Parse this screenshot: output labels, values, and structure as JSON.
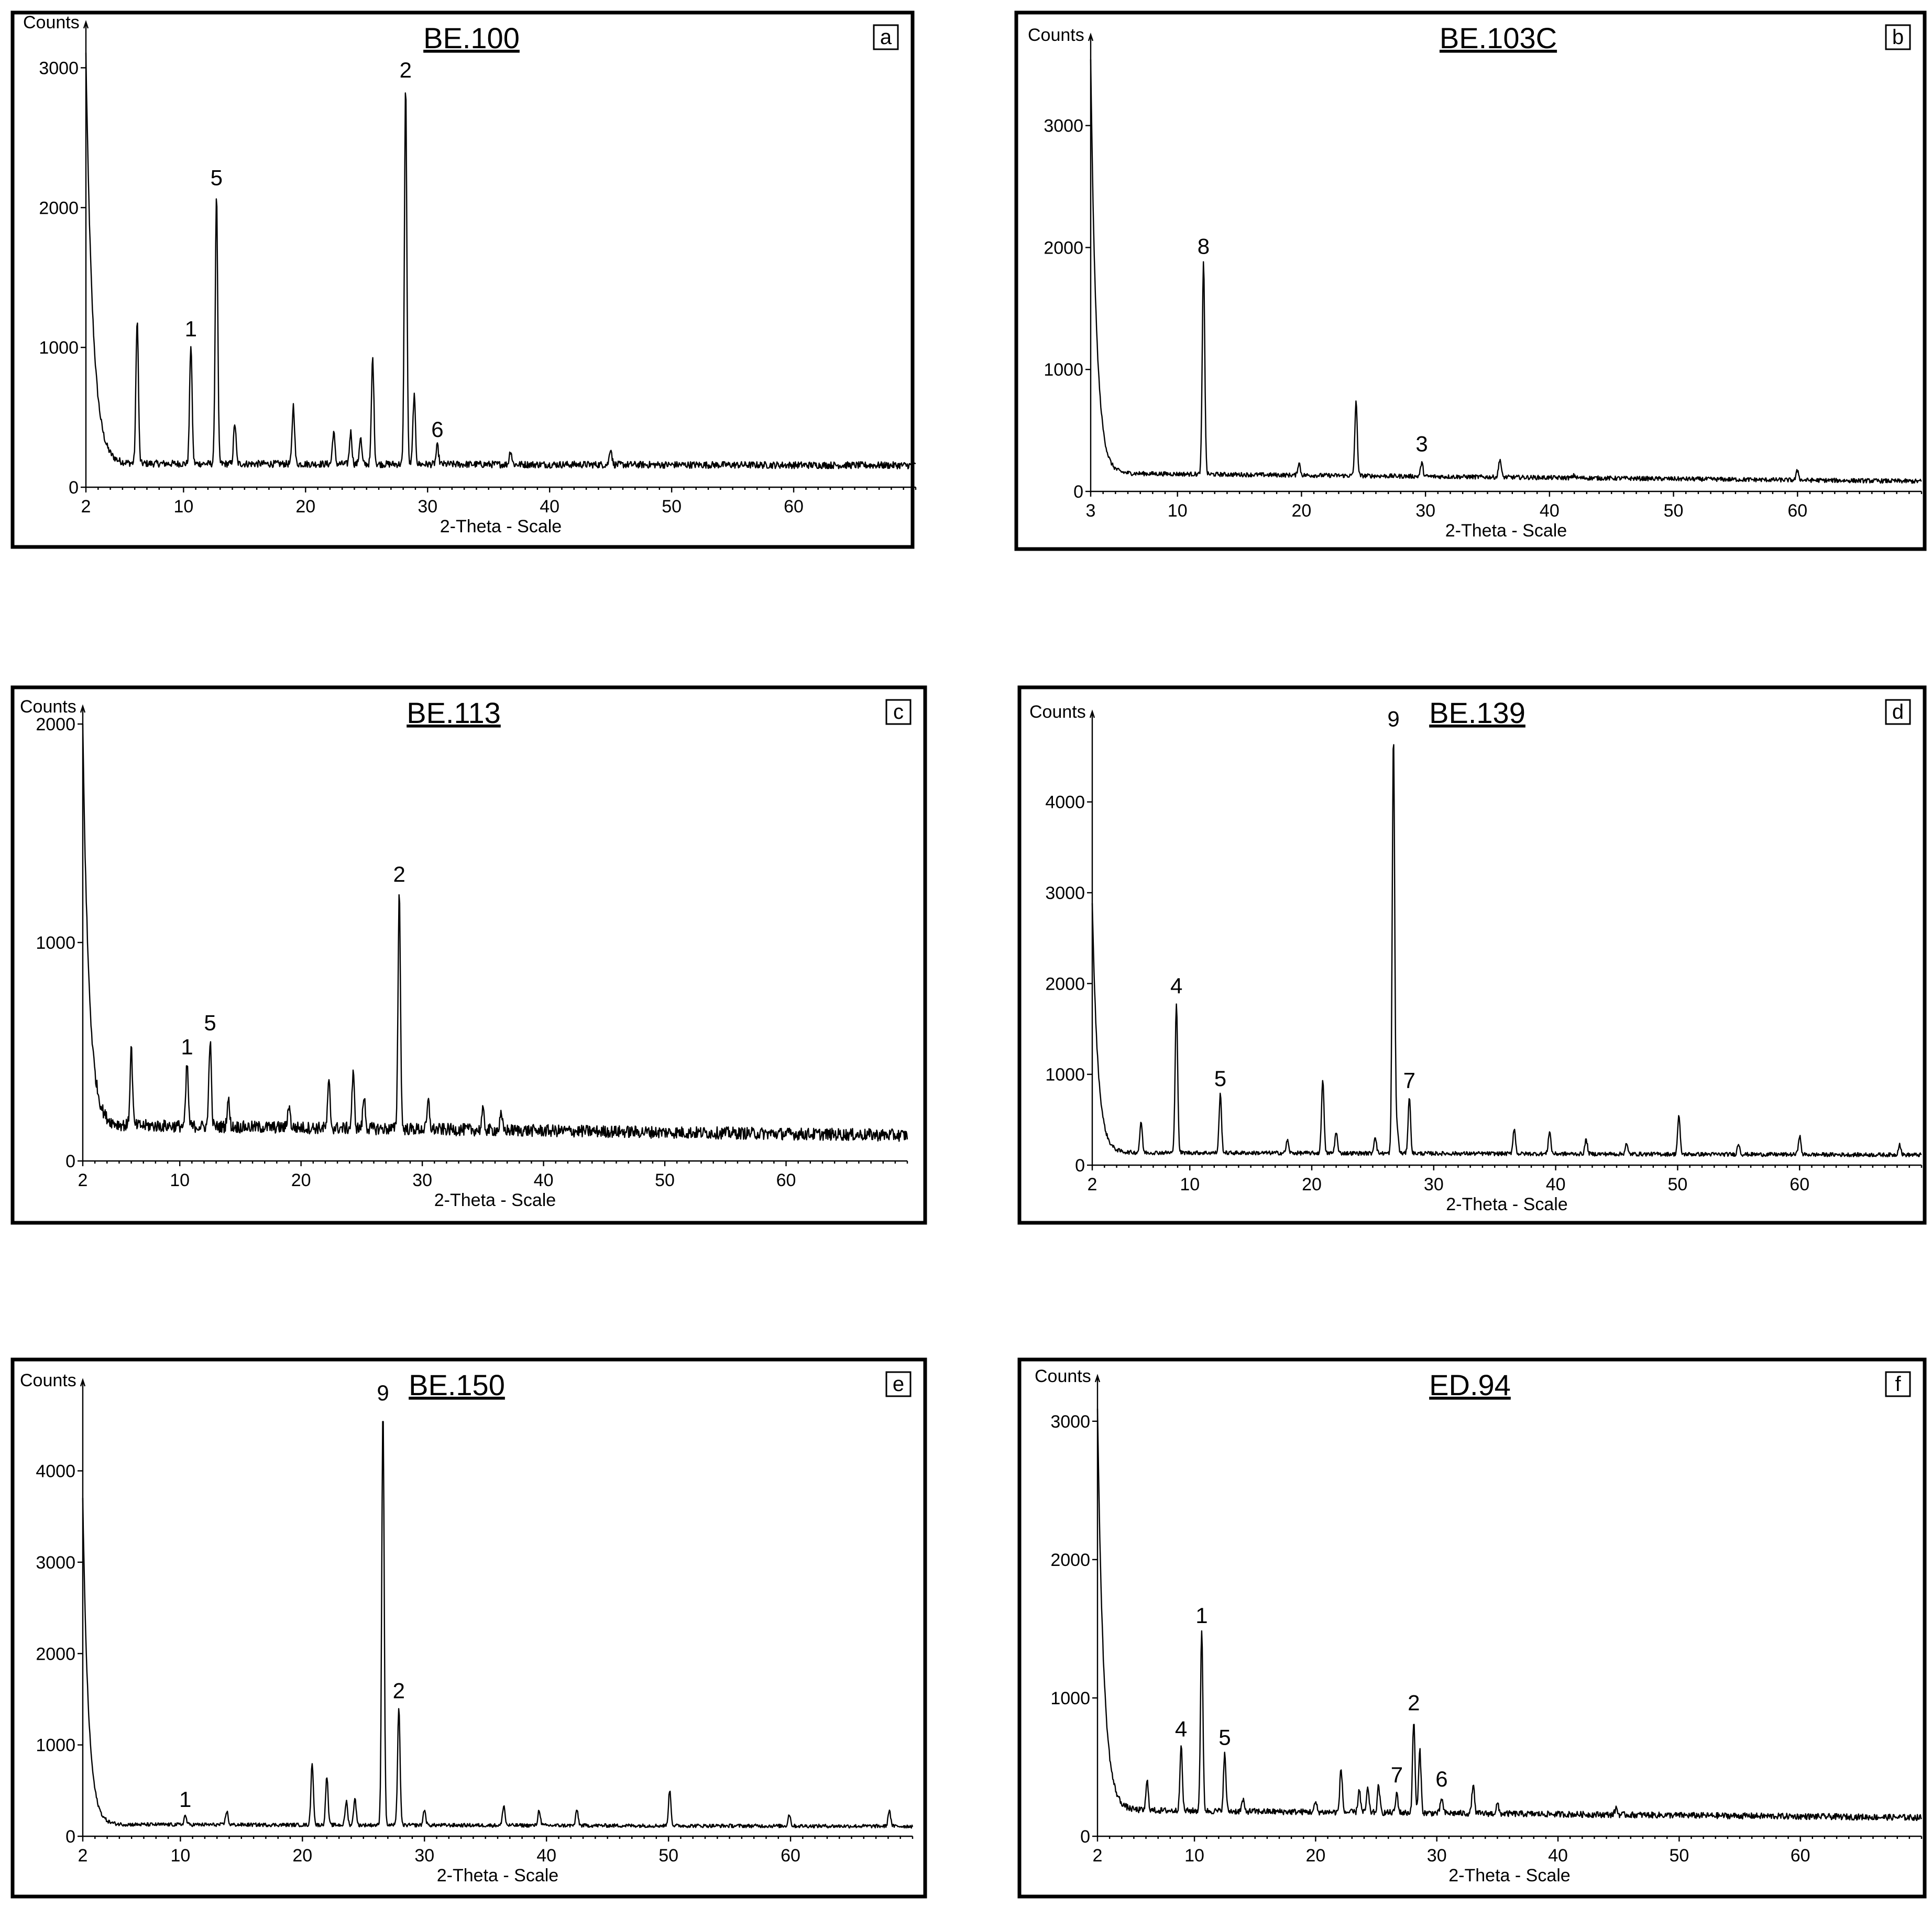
{
  "chart_data": [
    {
      "type": "line",
      "panel_letter": "a",
      "title": "BE.100",
      "xlabel": "2-Theta - Scale",
      "ylabel": "Counts",
      "xlim": [
        2,
        70
      ],
      "ylim": [
        0,
        3200
      ],
      "x_ticks": [
        2,
        10,
        20,
        30,
        40,
        50,
        60
      ],
      "y_ticks": [
        0,
        1000,
        2000,
        3000
      ],
      "background": {
        "start": 3100,
        "decay": 0.55,
        "base": 170,
        "slope": -0.2,
        "noise": 25
      },
      "peaks": [
        {
          "x": 6.2,
          "y": 1200
        },
        {
          "x": 10.6,
          "y": 1020,
          "label": "1"
        },
        {
          "x": 12.7,
          "y": 2100,
          "label": "5"
        },
        {
          "x": 14.2,
          "y": 460
        },
        {
          "x": 19.0,
          "y": 590
        },
        {
          "x": 22.3,
          "y": 400
        },
        {
          "x": 23.7,
          "y": 400
        },
        {
          "x": 24.5,
          "y": 360
        },
        {
          "x": 25.5,
          "y": 930
        },
        {
          "x": 28.2,
          "y": 2870,
          "label": "2"
        },
        {
          "x": 28.9,
          "y": 660
        },
        {
          "x": 30.8,
          "y": 300,
          "label": "6"
        },
        {
          "x": 36.8,
          "y": 270
        },
        {
          "x": 45.0,
          "y": 290
        }
      ]
    },
    {
      "type": "line",
      "panel_letter": "b",
      "title": "BE.103C",
      "xlabel": "2-Theta - Scale",
      "ylabel": "Counts",
      "xlim": [
        3,
        70
      ],
      "ylim": [
        0,
        3600
      ],
      "x_ticks": [
        3,
        10,
        20,
        30,
        40,
        50,
        60
      ],
      "y_ticks": [
        0,
        1000,
        2000,
        3000
      ],
      "background": {
        "start": 3550,
        "decay": 0.45,
        "base": 150,
        "slope": -1.0,
        "noise": 18
      },
      "peaks": [
        {
          "x": 12.1,
          "y": 1880,
          "label": "8"
        },
        {
          "x": 19.8,
          "y": 250
        },
        {
          "x": 24.4,
          "y": 750
        },
        {
          "x": 29.7,
          "y": 260,
          "label": "3"
        },
        {
          "x": 36.0,
          "y": 300
        },
        {
          "x": 42.0,
          "y": 170
        },
        {
          "x": 60.0,
          "y": 230
        }
      ]
    },
    {
      "type": "line",
      "panel_letter": "c",
      "title": "BE.113",
      "xlabel": "2-Theta - Scale",
      "ylabel": "Counts",
      "xlim": [
        2,
        70
      ],
      "ylim": [
        0,
        2000
      ],
      "x_ticks": [
        2,
        10,
        20,
        30,
        40,
        50,
        60
      ],
      "y_ticks": [
        0,
        1000,
        2000
      ],
      "background": {
        "start": 2000,
        "decay": 0.5,
        "base": 165,
        "slope": -0.7,
        "noise": 28
      },
      "peaks": [
        {
          "x": 6.0,
          "y": 520
        },
        {
          "x": 10.6,
          "y": 450,
          "label": "1"
        },
        {
          "x": 12.5,
          "y": 560,
          "label": "5"
        },
        {
          "x": 14.0,
          "y": 290
        },
        {
          "x": 19.0,
          "y": 270
        },
        {
          "x": 22.3,
          "y": 370
        },
        {
          "x": 24.3,
          "y": 410
        },
        {
          "x": 25.2,
          "y": 310
        },
        {
          "x": 28.1,
          "y": 1240,
          "label": "2"
        },
        {
          "x": 30.5,
          "y": 290
        },
        {
          "x": 35.0,
          "y": 250
        },
        {
          "x": 36.5,
          "y": 230
        }
      ]
    },
    {
      "type": "line",
      "panel_letter": "d",
      "title": "BE.139",
      "xlabel": "2-Theta - Scale",
      "ylabel": "Counts",
      "xlim": [
        2,
        70
      ],
      "ylim": [
        0,
        4800
      ],
      "x_ticks": [
        2,
        10,
        20,
        30,
        40,
        50,
        60
      ],
      "y_ticks": [
        0,
        1000,
        2000,
        3000,
        4000
      ],
      "background": {
        "start": 2900,
        "decay": 0.45,
        "base": 140,
        "slope": -0.4,
        "noise": 22
      },
      "peaks": [
        {
          "x": 6.0,
          "y": 480
        },
        {
          "x": 8.9,
          "y": 1800,
          "label": "4"
        },
        {
          "x": 12.5,
          "y": 780,
          "label": "5"
        },
        {
          "x": 18.0,
          "y": 280
        },
        {
          "x": 20.9,
          "y": 960
        },
        {
          "x": 22.0,
          "y": 380
        },
        {
          "x": 25.2,
          "y": 330
        },
        {
          "x": 26.7,
          "y": 4740,
          "label": "9"
        },
        {
          "x": 27.0,
          "y": 420
        },
        {
          "x": 28.0,
          "y": 760,
          "label": "7"
        },
        {
          "x": 36.6,
          "y": 420
        },
        {
          "x": 39.5,
          "y": 390
        },
        {
          "x": 42.5,
          "y": 300
        },
        {
          "x": 45.8,
          "y": 250
        },
        {
          "x": 50.1,
          "y": 560
        },
        {
          "x": 55.0,
          "y": 260
        },
        {
          "x": 60.0,
          "y": 350
        },
        {
          "x": 68.2,
          "y": 260
        }
      ]
    },
    {
      "type": "line",
      "panel_letter": "e",
      "title": "BE.150",
      "xlabel": "2-Theta - Scale",
      "ylabel": "Counts",
      "xlim": [
        2,
        70
      ],
      "ylim": [
        0,
        4800
      ],
      "x_ticks": [
        2,
        10,
        20,
        30,
        40,
        50,
        60
      ],
      "y_ticks": [
        0,
        1000,
        2000,
        3000,
        4000
      ],
      "background": {
        "start": 3700,
        "decay": 0.45,
        "base": 130,
        "slope": -0.3,
        "noise": 20
      },
      "peaks": [
        {
          "x": 10.4,
          "y": 230,
          "label": "1"
        },
        {
          "x": 13.8,
          "y": 280
        },
        {
          "x": 20.8,
          "y": 810
        },
        {
          "x": 22.0,
          "y": 660
        },
        {
          "x": 23.6,
          "y": 390
        },
        {
          "x": 24.3,
          "y": 430
        },
        {
          "x": 26.6,
          "y": 4680,
          "label": "9"
        },
        {
          "x": 27.9,
          "y": 1420,
          "label": "2"
        },
        {
          "x": 30.0,
          "y": 300
        },
        {
          "x": 36.5,
          "y": 350
        },
        {
          "x": 39.4,
          "y": 300
        },
        {
          "x": 42.5,
          "y": 300
        },
        {
          "x": 50.1,
          "y": 520
        },
        {
          "x": 59.9,
          "y": 260
        },
        {
          "x": 68.1,
          "y": 310
        }
      ]
    },
    {
      "type": "line",
      "panel_letter": "f",
      "title": "ED.94",
      "xlabel": "2-Theta - Scale",
      "ylabel": "Counts",
      "xlim": [
        2,
        70
      ],
      "ylim": [
        0,
        3200
      ],
      "x_ticks": [
        2,
        10,
        20,
        30,
        40,
        50,
        60
      ],
      "y_ticks": [
        0,
        1000,
        2000,
        3000
      ],
      "background": {
        "start": 3100,
        "decay": 0.5,
        "base": 190,
        "slope": -0.8,
        "noise": 22
      },
      "peaks": [
        {
          "x": 6.1,
          "y": 400
        },
        {
          "x": 8.9,
          "y": 660,
          "label": "4"
        },
        {
          "x": 10.6,
          "y": 1480,
          "label": "1"
        },
        {
          "x": 12.5,
          "y": 600,
          "label": "5"
        },
        {
          "x": 14.0,
          "y": 270
        },
        {
          "x": 20.0,
          "y": 260
        },
        {
          "x": 22.1,
          "y": 510
        },
        {
          "x": 23.6,
          "y": 360
        },
        {
          "x": 24.3,
          "y": 360
        },
        {
          "x": 25.2,
          "y": 380
        },
        {
          "x": 26.7,
          "y": 330,
          "label": "7"
        },
        {
          "x": 28.1,
          "y": 850,
          "label": "2"
        },
        {
          "x": 28.6,
          "y": 640
        },
        {
          "x": 30.4,
          "y": 300,
          "label": "6"
        },
        {
          "x": 33.0,
          "y": 400
        },
        {
          "x": 35.0,
          "y": 260
        },
        {
          "x": 44.8,
          "y": 240
        }
      ]
    }
  ]
}
